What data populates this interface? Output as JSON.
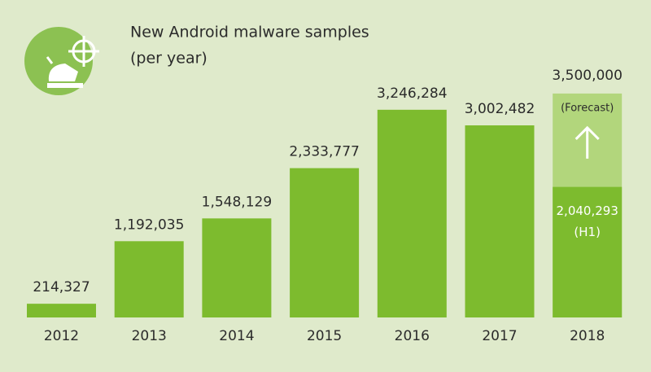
{
  "chart_data": {
    "type": "bar",
    "title": "New Android malware samples",
    "subtitle": "(per year)",
    "categories": [
      "2012",
      "2013",
      "2014",
      "2015",
      "2016",
      "2017",
      "2018"
    ],
    "values": [
      214327,
      1192035,
      1548129,
      2333777,
      3246284,
      3002482,
      2040293
    ],
    "value_labels": [
      "214,327",
      "1,192,035",
      "1,548,129",
      "2,333,777",
      "3,246,284",
      "3,002,482",
      "2,040,293"
    ],
    "color": "#7dbb2e",
    "partial_label": "(H1)",
    "forecast": {
      "label": "(Forecast)",
      "value": 3500000,
      "value_label": "3,500,000",
      "color": "#b2d67c"
    }
  }
}
